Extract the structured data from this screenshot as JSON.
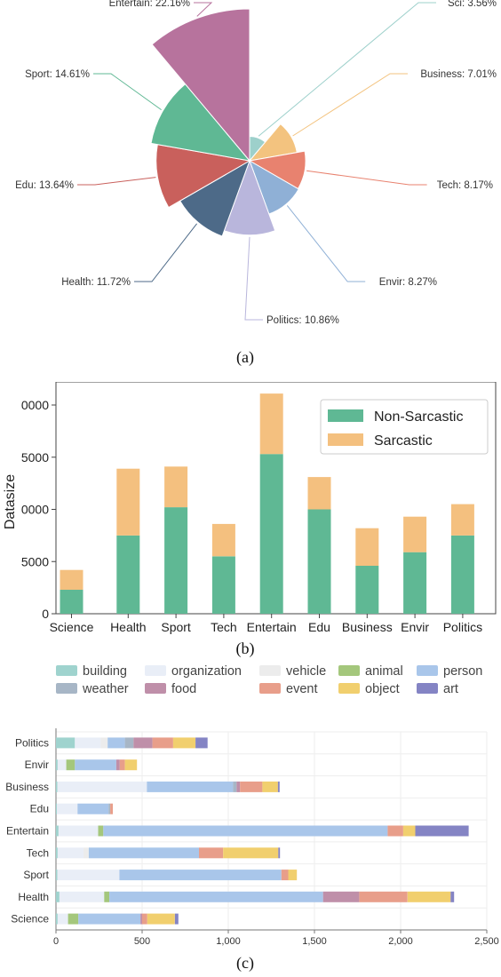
{
  "chart_data": [
    {
      "id": "a",
      "type": "pie",
      "variant": "nightingale-rose",
      "caption": "(a)",
      "slices": [
        {
          "label": "Sci",
          "value": 3.56,
          "text": "Sci: 3.56%",
          "color": "#9dd0cb"
        },
        {
          "label": "Business",
          "value": 7.01,
          "text": "Business: 7.01%",
          "color": "#f3c37f"
        },
        {
          "label": "Tech",
          "value": 8.17,
          "text": "Tech: 8.17%",
          "color": "#e8826f"
        },
        {
          "label": "Envir",
          "value": 8.27,
          "text": "Envir: 8.27%",
          "color": "#8fb0d6"
        },
        {
          "label": "Politics",
          "value": 10.86,
          "text": "Politics: 10.86%",
          "color": "#b9b6dc"
        },
        {
          "label": "Health",
          "value": 11.72,
          "text": "Health: 11.72%",
          "color": "#4d6a88"
        },
        {
          "label": "Edu",
          "value": 13.64,
          "text": "Edu: 13.64%",
          "color": "#c9605c"
        },
        {
          "label": "Sport",
          "value": 14.61,
          "text": "Sport: 14.61%",
          "color": "#5fb894"
        },
        {
          "label": "Entertain",
          "value": 22.16,
          "text": "Entertain: 22.16%",
          "color": "#b7739d"
        }
      ]
    },
    {
      "id": "b",
      "type": "bar",
      "stacked": true,
      "caption": "(b)",
      "ylabel": "Datasize",
      "ytick_labels": [
        "0",
        "5000",
        "0000",
        "5000",
        "0000"
      ],
      "ylim": [
        0,
        20000
      ],
      "grid": false,
      "legend_position": "top-right",
      "categories": [
        "Science",
        "Health",
        "Sport",
        "Tech",
        "Entertain",
        "Edu",
        "Business",
        "Envir",
        "Politics"
      ],
      "series": [
        {
          "name": "Non-Sarcastic",
          "color": "#5fb894",
          "values": [
            2300,
            7500,
            10200,
            5500,
            15300,
            10000,
            4600,
            5900,
            7500
          ]
        },
        {
          "name": "Sarcastic",
          "color": "#f4c07f",
          "values": [
            1900,
            6400,
            3900,
            3100,
            5800,
            3100,
            3600,
            3400,
            3000
          ]
        }
      ]
    },
    {
      "id": "c",
      "type": "bar",
      "orientation": "horizontal",
      "stacked": true,
      "caption": "(c)",
      "xlim": [
        0,
        2500
      ],
      "xtick_labels": [
        "0",
        "500",
        "1,000",
        "1,500",
        "2,000",
        "2,500"
      ],
      "grid": true,
      "legend_position": "top",
      "categories": [
        "Politics",
        "Envir",
        "Business",
        "Edu",
        "Entertain",
        "Tech",
        "Sport",
        "Health",
        "Science"
      ],
      "series": [
        {
          "name": "building",
          "color": "#9fd3ce",
          "values": [
            110,
            10,
            8,
            5,
            15,
            10,
            8,
            20,
            10
          ]
        },
        {
          "name": "organization",
          "color": "#e9eef7",
          "values": [
            150,
            50,
            520,
            120,
            230,
            150,
            360,
            260,
            60
          ]
        },
        {
          "name": "vehicle",
          "color": "#ececec",
          "values": [
            40,
            0,
            0,
            0,
            0,
            30,
            0,
            0,
            0
          ]
        },
        {
          "name": "animal",
          "color": "#a4c77c",
          "values": [
            0,
            50,
            0,
            0,
            30,
            0,
            0,
            30,
            60
          ]
        },
        {
          "name": "person",
          "color": "#a9c6ea",
          "values": [
            100,
            240,
            500,
            180,
            1650,
            640,
            940,
            1240,
            360
          ]
        },
        {
          "name": "weather",
          "color": "#a7b6c6",
          "values": [
            50,
            0,
            20,
            10,
            0,
            0,
            0,
            0,
            0
          ]
        },
        {
          "name": "food",
          "color": "#bf8fa9",
          "values": [
            110,
            20,
            20,
            0,
            0,
            0,
            0,
            210,
            10
          ]
        },
        {
          "name": "event",
          "color": "#e89e8a",
          "values": [
            120,
            30,
            130,
            15,
            90,
            140,
            40,
            280,
            30
          ]
        },
        {
          "name": "object",
          "color": "#f1cf6e",
          "values": [
            130,
            70,
            90,
            0,
            70,
            320,
            50,
            250,
            160
          ]
        },
        {
          "name": "art",
          "color": "#8484c4",
          "values": [
            70,
            0,
            10,
            0,
            310,
            10,
            0,
            20,
            20
          ]
        }
      ]
    }
  ]
}
